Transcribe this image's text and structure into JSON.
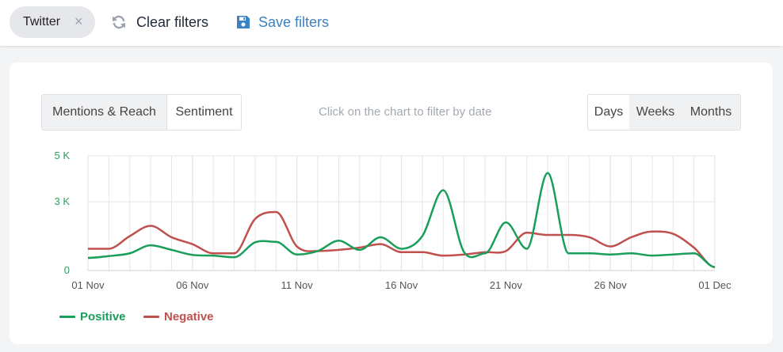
{
  "filter_chip": {
    "label": "Twitter",
    "close_glyph": "×"
  },
  "toolbar": {
    "clear_label": "Clear filters",
    "clear_icon": "refresh-icon",
    "save_label": "Save filters",
    "save_icon": "floppy-disk-icon"
  },
  "tabs": [
    {
      "label": "Mentions & Reach",
      "active": false
    },
    {
      "label": "Sentiment",
      "active": true
    }
  ],
  "hint": "Click on the chart to filter by date",
  "periods": [
    {
      "label": "Days",
      "active": true
    },
    {
      "label": "Weeks",
      "active": false
    },
    {
      "label": "Months",
      "active": false
    }
  ],
  "colors": {
    "positive": "#1a9e5c",
    "negative": "#c0504d",
    "axis_text": "#555555",
    "y_text": "#2e9e5e",
    "grid": "#e6e6e6"
  },
  "chart_data": {
    "type": "line",
    "ylim": [
      0,
      5000
    ],
    "y_ticks": [
      {
        "value": 0,
        "label": "0"
      },
      {
        "value": 3000,
        "label": "3 K"
      },
      {
        "value": 5000,
        "label": "5 K"
      }
    ],
    "x_ticks": [
      "01 Nov",
      "06 Nov",
      "11 Nov",
      "16 Nov",
      "21 Nov",
      "26 Nov",
      "01 Dec"
    ],
    "x": [
      "01 Nov",
      "02 Nov",
      "03 Nov",
      "04 Nov",
      "05 Nov",
      "06 Nov",
      "07 Nov",
      "08 Nov",
      "09 Nov",
      "10 Nov",
      "11 Nov",
      "12 Nov",
      "13 Nov",
      "14 Nov",
      "15 Nov",
      "16 Nov",
      "17 Nov",
      "18 Nov",
      "19 Nov",
      "20 Nov",
      "21 Nov",
      "22 Nov",
      "23 Nov",
      "24 Nov",
      "25 Nov",
      "26 Nov",
      "27 Nov",
      "28 Nov",
      "29 Nov",
      "30 Nov",
      "01 Dec"
    ],
    "series": [
      {
        "name": "Positive",
        "color": "#1a9e5c",
        "values": [
          550,
          630,
          750,
          1100,
          900,
          680,
          650,
          580,
          1230,
          1250,
          700,
          850,
          1300,
          900,
          1450,
          950,
          1500,
          3500,
          800,
          750,
          2100,
          950,
          4250,
          750,
          750,
          700,
          750,
          650,
          700,
          750,
          150
        ]
      },
      {
        "name": "Negative",
        "color": "#c0504d",
        "values": [
          950,
          950,
          1500,
          1950,
          1450,
          1150,
          750,
          750,
          2250,
          2550,
          1050,
          850,
          900,
          1000,
          1150,
          800,
          800,
          650,
          700,
          800,
          850,
          1650,
          1550,
          1550,
          1450,
          1050,
          1450,
          1700,
          1600,
          1000,
          150
        ]
      }
    ]
  }
}
